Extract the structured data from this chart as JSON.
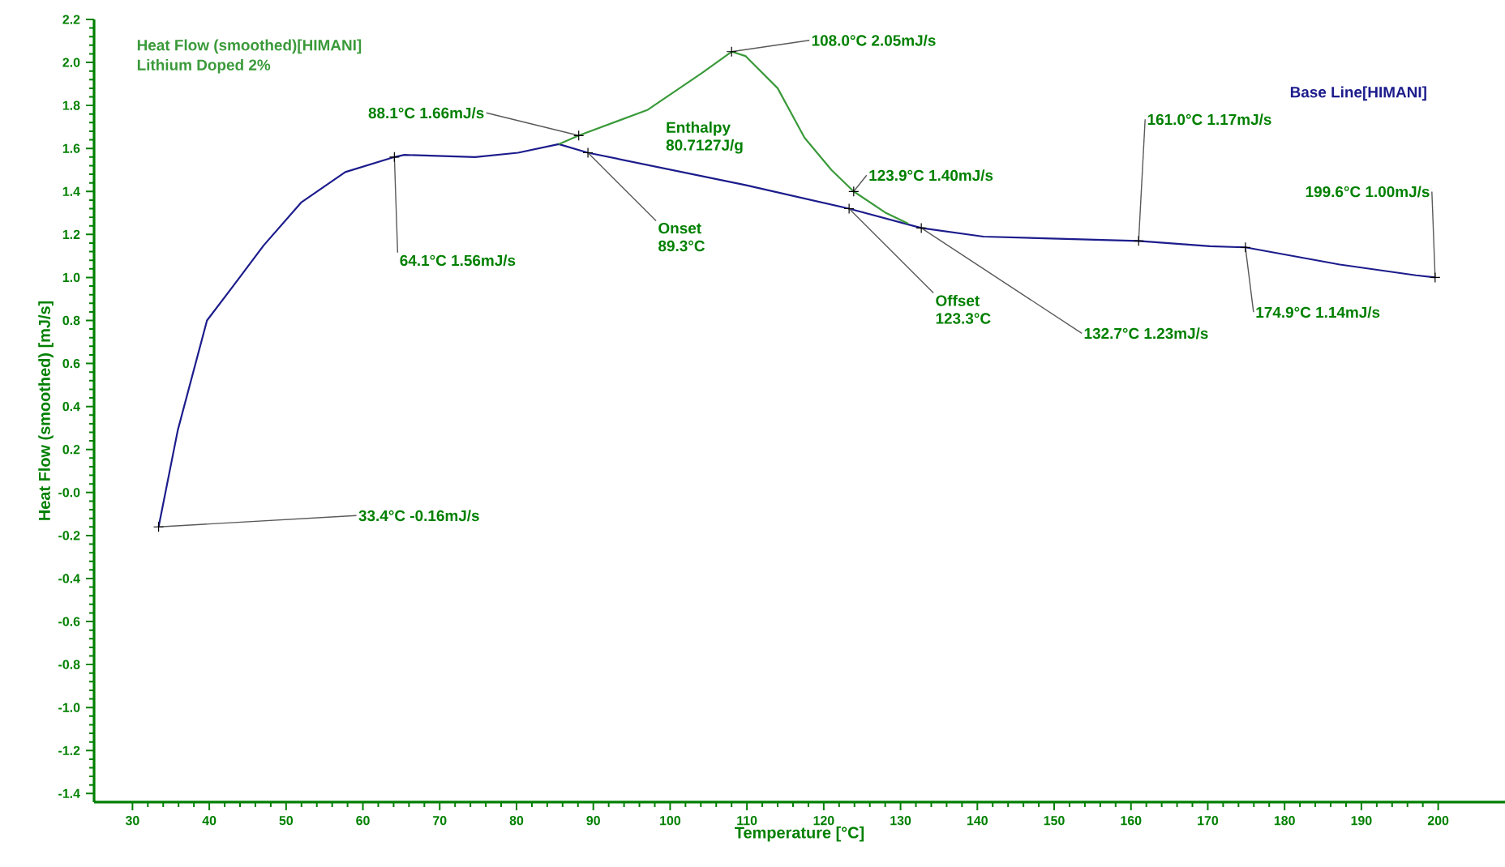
{
  "chart_data": {
    "type": "line",
    "subtitle": "Lithium Doped 2%",
    "xlabel": "Temperature  [°C]",
    "ylabel": "Heat Flow (smoothed)  [mJ/s]",
    "x": [
      33.4,
      35.9,
      39.7,
      42.9,
      47.1,
      52.0,
      57.7,
      64.1,
      65.4,
      74.6,
      80.2,
      85.5,
      89.3,
      109.8,
      123.3,
      132.7,
      140.8,
      161.0,
      170.3,
      174.9,
      187.2,
      197.1,
      199.6
    ],
    "series": [
      {
        "name": "Base Line[HIMANI]",
        "color": "#1c1c8c",
        "values": [
          -0.16,
          0.29,
          0.8,
          0.95,
          1.15,
          1.35,
          1.49,
          1.56,
          1.57,
          1.56,
          1.58,
          1.62,
          1.58,
          1.43,
          1.32,
          1.23,
          1.19,
          1.17,
          1.145,
          1.14,
          1.06,
          1.01,
          1.0
        ]
      },
      {
        "name": "Heat Flow (smoothed)[HIMANI]",
        "color": "#3a9a3a",
        "x": [
          85.5,
          88.1,
          97.1,
          104.1,
          108.0,
          109.8,
          114.0,
          117.5,
          121.0,
          123.9,
          128.1,
          131.0
        ],
        "values": [
          1.62,
          1.66,
          1.78,
          1.95,
          2.05,
          2.03,
          1.88,
          1.65,
          1.5,
          1.4,
          1.3,
          1.25
        ]
      }
    ],
    "xlim": [
      25,
      208.7
    ],
    "ylim": [
      -1.44,
      2.2
    ],
    "xticks": [
      30,
      40,
      50,
      60,
      70,
      80,
      90,
      100,
      110,
      120,
      130,
      140,
      150,
      160,
      170,
      180,
      190,
      200
    ],
    "yticks": [
      {
        "value": -1.4,
        "label": "-1.4"
      },
      {
        "value": -1.2,
        "label": "-1.2"
      },
      {
        "value": -1.0,
        "label": "-1.0"
      },
      {
        "value": -0.8,
        "label": "-0.8"
      },
      {
        "value": -0.6,
        "label": "-0.6"
      },
      {
        "value": -0.4,
        "label": "-0.4"
      },
      {
        "value": -0.2,
        "label": "-0.2"
      },
      {
        "value": 0,
        "label": "-0.0"
      },
      {
        "value": 0.2,
        "label": "0.2"
      },
      {
        "value": 0.4,
        "label": "0.4"
      },
      {
        "value": 0.6,
        "label": "0.6"
      },
      {
        "value": 0.8,
        "label": "0.8"
      },
      {
        "value": 1.0,
        "label": "1.0"
      },
      {
        "value": 1.2,
        "label": "1.2"
      },
      {
        "value": 1.4,
        "label": "1.4"
      },
      {
        "value": 1.6,
        "label": "1.6"
      },
      {
        "value": 1.8,
        "label": "1.8"
      },
      {
        "value": 2.0,
        "label": "2.0"
      },
      {
        "value": 2.2,
        "label": "2.2"
      }
    ],
    "grid": false,
    "marker": "none",
    "line_style": "solid",
    "annotations": [
      {
        "text": "88.1°C   1.66mJ/s",
        "x": 88.1,
        "y": 1.66
      },
      {
        "text": "64.1°C   1.56mJ/s",
        "x": 64.1,
        "y": 1.56
      },
      {
        "text": "108.0°C   2.05mJ/s",
        "x": 108.0,
        "y": 2.05
      },
      {
        "text": "Onset 89.3°C",
        "x": 89.3,
        "y": 1.58
      },
      "Enthalpy 80.7127J/g",
      {
        "text": "123.9°C   1.40mJ/s",
        "x": 123.9,
        "y": 1.4
      },
      {
        "text": "Offset 123.3°C",
        "x": 123.3,
        "y": 1.32
      },
      {
        "text": "132.7°C   1.23mJ/s",
        "x": 132.7,
        "y": 1.23
      },
      {
        "text": "161.0°C   1.17mJ/s",
        "x": 161.0,
        "y": 1.17
      },
      {
        "text": "174.9°C   1.14mJ/s",
        "x": 174.9,
        "y": 1.14
      },
      {
        "text": "199.6°C   1.00mJ/s",
        "x": 199.6,
        "y": 1.0
      },
      {
        "text": "33.4°C  -0.16mJ/s",
        "x": 33.4,
        "y": -0.16
      }
    ]
  }
}
